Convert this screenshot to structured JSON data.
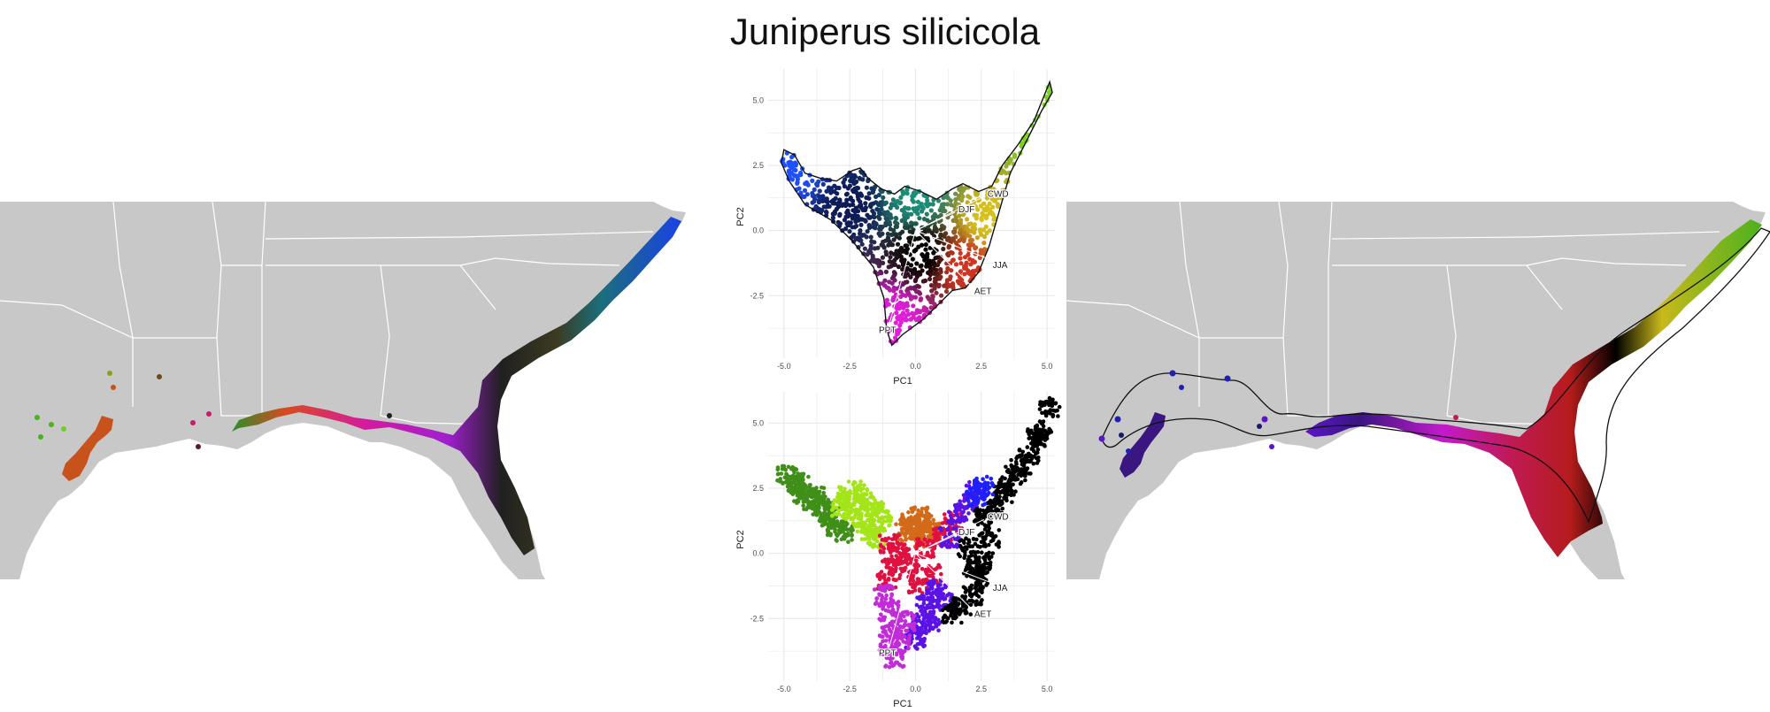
{
  "page": {
    "title": "Juniperus silicicola"
  },
  "chart_data": [
    {
      "type": "scatter",
      "panel": "PCA environmental space (continuous colour)",
      "xlabel": "PC1",
      "ylabel": "PC2",
      "xlim": [
        -5.6,
        5.3
      ],
      "ylim": [
        -4.9,
        6.2
      ],
      "xticks": [
        -5.0,
        -2.5,
        0.0,
        2.5,
        5.0
      ],
      "yticks": [
        -2.5,
        0.0,
        2.5,
        5.0
      ],
      "xtick_labels": [
        "-5.0",
        "-2.5",
        "0.0",
        "2.5",
        "5.0"
      ],
      "ytick_labels": [
        "-2.5",
        "0.0",
        "2.5",
        "5.0"
      ],
      "grid": true,
      "outline": [
        [
          -5.0,
          3.1
        ],
        [
          -4.6,
          2.9
        ],
        [
          -4.2,
          2.2
        ],
        [
          -3.6,
          2.0
        ],
        [
          -3.0,
          1.9
        ],
        [
          -2.4,
          2.3
        ],
        [
          -2.1,
          2.4
        ],
        [
          -1.8,
          2.0
        ],
        [
          -1.3,
          1.6
        ],
        [
          -0.8,
          1.4
        ],
        [
          -0.4,
          1.7
        ],
        [
          0.2,
          1.5
        ],
        [
          0.8,
          1.2
        ],
        [
          1.4,
          1.6
        ],
        [
          1.8,
          1.8
        ],
        [
          2.4,
          1.5
        ],
        [
          2.9,
          1.7
        ],
        [
          3.3,
          2.5
        ],
        [
          3.9,
          3.3
        ],
        [
          4.5,
          4.2
        ],
        [
          5.1,
          5.7
        ],
        [
          5.2,
          5.3
        ],
        [
          4.8,
          4.6
        ],
        [
          4.2,
          3.4
        ],
        [
          3.6,
          2.2
        ],
        [
          3.2,
          0.8
        ],
        [
          2.8,
          -0.6
        ],
        [
          2.4,
          -1.6
        ],
        [
          1.9,
          -2.2
        ],
        [
          1.4,
          -2.3
        ],
        [
          1.0,
          -2.7
        ],
        [
          0.3,
          -3.4
        ],
        [
          -0.5,
          -4.0
        ],
        [
          -0.9,
          -4.4
        ],
        [
          -1.1,
          -3.8
        ],
        [
          -1.2,
          -2.6
        ],
        [
          -1.6,
          -1.4
        ],
        [
          -2.4,
          -0.4
        ],
        [
          -3.2,
          0.4
        ],
        [
          -4.2,
          1.0
        ],
        [
          -4.8,
          1.9
        ],
        [
          -5.1,
          2.6
        ]
      ],
      "color_stops": [
        {
          "at": [
            -4.6,
            2.5
          ],
          "color": "#1f4fff"
        },
        {
          "at": [
            -2.5,
            1.0
          ],
          "color": "#0d1a55"
        },
        {
          "at": [
            0.0,
            1.3
          ],
          "color": "#1a8f78"
        },
        {
          "at": [
            4.5,
            4.4
          ],
          "color": "#7dd31f"
        },
        {
          "at": [
            2.7,
            0.4
          ],
          "color": "#d7c21c"
        },
        {
          "at": [
            1.8,
            -1.3
          ],
          "color": "#d13420"
        },
        {
          "at": [
            -0.8,
            -3.4
          ],
          "color": "#e01fd9"
        },
        {
          "at": [
            0.3,
            -0.9
          ],
          "color": "#000000"
        }
      ],
      "vectors": [
        {
          "label": "CWD",
          "x": 2.6,
          "y": 1.3
        },
        {
          "label": "DJF",
          "x": 1.5,
          "y": 0.7
        },
        {
          "label": "JJA",
          "x": 2.8,
          "y": -1.1
        },
        {
          "label": "AET",
          "x": 2.1,
          "y": -2.1
        },
        {
          "label": "PPT",
          "x": -1.0,
          "y": -3.6
        }
      ]
    },
    {
      "type": "scatter",
      "panel": "PCA environmental space (clustered colour)",
      "xlabel": "PC1",
      "ylabel": "PC2",
      "xlim": [
        -5.6,
        5.3
      ],
      "ylim": [
        -4.9,
        6.2
      ],
      "xticks": [
        -5.0,
        -2.5,
        0.0,
        2.5,
        5.0
      ],
      "yticks": [
        -2.5,
        0.0,
        2.5,
        5.0
      ],
      "xtick_labels": [
        "-5.0",
        "-2.5",
        "0.0",
        "2.5",
        "5.0"
      ],
      "ytick_labels": [
        "-2.5",
        "0.0",
        "2.5",
        "5.0"
      ],
      "grid": true,
      "clusters": [
        {
          "color": "#3f8f18",
          "points": [
            [
              -4.9,
              3.0
            ],
            [
              -4.6,
              2.7
            ],
            [
              -4.3,
              2.3
            ],
            [
              -4.0,
              2.0
            ],
            [
              -3.6,
              1.8
            ],
            [
              -3.2,
              1.4
            ],
            [
              -3.0,
              1.0
            ],
            [
              -2.7,
              0.8
            ],
            [
              -3.4,
              1.6
            ],
            [
              -4.4,
              2.6
            ],
            [
              -3.8,
              2.2
            ]
          ]
        },
        {
          "color": "#a4e51a",
          "points": [
            [
              -2.6,
              2.2
            ],
            [
              -2.2,
              2.4
            ],
            [
              -1.9,
              2.0
            ],
            [
              -1.6,
              1.6
            ],
            [
              -1.3,
              1.3
            ],
            [
              -2.4,
              1.6
            ],
            [
              -2.0,
              1.2
            ],
            [
              -1.7,
              0.9
            ],
            [
              -2.8,
              1.8
            ],
            [
              -1.5,
              0.6
            ]
          ]
        },
        {
          "color": "#d36a1a",
          "points": [
            [
              -0.2,
              1.2
            ],
            [
              0.2,
              1.4
            ],
            [
              0.5,
              1.1
            ],
            [
              0.0,
              0.9
            ],
            [
              0.3,
              0.6
            ],
            [
              -0.4,
              0.8
            ],
            [
              0.6,
              0.8
            ]
          ]
        },
        {
          "color": "#e01040",
          "points": [
            [
              -1.0,
              0.4
            ],
            [
              -0.6,
              0.0
            ],
            [
              -0.2,
              -0.4
            ],
            [
              0.4,
              0.2
            ],
            [
              1.0,
              0.6
            ],
            [
              1.4,
              1.2
            ],
            [
              -0.9,
              -0.6
            ],
            [
              0.6,
              -0.8
            ],
            [
              -1.1,
              -1.0
            ],
            [
              0.1,
              -1.2
            ]
          ]
        },
        {
          "color": "#5b12e6",
          "points": [
            [
              1.6,
              1.5
            ],
            [
              2.0,
              1.9
            ],
            [
              2.3,
              2.4
            ],
            [
              1.3,
              0.6
            ],
            [
              0.8,
              -1.4
            ],
            [
              0.4,
              -2.0
            ],
            [
              0.2,
              -2.7
            ],
            [
              0.0,
              -3.3
            ],
            [
              0.6,
              -2.6
            ],
            [
              1.1,
              -1.8
            ]
          ]
        },
        {
          "color": "#c22bd8",
          "points": [
            [
              -1.2,
              -1.6
            ],
            [
              -1.0,
              -2.2
            ],
            [
              -0.9,
              -2.9
            ],
            [
              -1.0,
              -3.5
            ],
            [
              -0.8,
              -4.0
            ],
            [
              -0.6,
              -3.4
            ],
            [
              -0.4,
              -2.6
            ]
          ]
        },
        {
          "color": "#000000",
          "points": [
            [
              2.6,
              1.4
            ],
            [
              3.0,
              1.8
            ],
            [
              3.3,
              2.3
            ],
            [
              3.8,
              3.0
            ],
            [
              4.3,
              3.8
            ],
            [
              4.8,
              4.7
            ],
            [
              5.1,
              5.6
            ],
            [
              2.8,
              0.6
            ],
            [
              2.6,
              -0.3
            ],
            [
              2.4,
              -1.0
            ],
            [
              2.2,
              -1.6
            ],
            [
              1.8,
              -2.0
            ],
            [
              1.4,
              -2.3
            ],
            [
              2.0,
              0.2
            ],
            [
              2.2,
              -0.6
            ],
            [
              3.5,
              2.6
            ],
            [
              4.0,
              3.4
            ],
            [
              4.6,
              4.4
            ]
          ]
        },
        {
          "color": "#1f1fff",
          "points": [
            [
              2.3,
              2.2
            ],
            [
              2.6,
              2.6
            ]
          ]
        }
      ],
      "vectors": [
        {
          "label": "CWD",
          "x": 2.6,
          "y": 1.3
        },
        {
          "label": "DJF",
          "x": 1.5,
          "y": 0.7
        },
        {
          "label": "JJA",
          "x": 2.8,
          "y": -1.1
        },
        {
          "label": "AET",
          "x": 2.1,
          "y": -2.1
        },
        {
          "label": "PPT",
          "x": -1.0,
          "y": -3.6
        }
      ]
    }
  ],
  "colors": {
    "land": "#c8c8c8",
    "state_border": "#ffffff",
    "grid": "#e6e6e6",
    "tick_text": "#4d4d4d",
    "hull_outline": "#111111"
  }
}
